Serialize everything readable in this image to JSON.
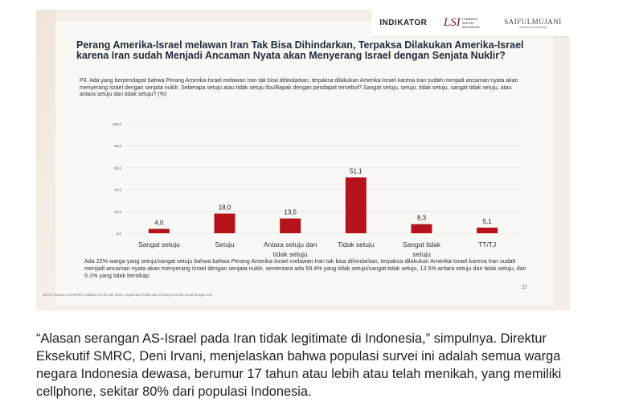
{
  "logos": {
    "indikator": "INDIKATOR",
    "lsi_mark": "LSI",
    "lsi_text": "LEMBAGA SURVEI INDONESIA",
    "saiful": "SAIFULMUJANI",
    "saiful_sub": "research & consulting"
  },
  "slide": {
    "title": "Perang Amerika-Israel melawan Iran Tak Bisa Dihindarkan, Terpaksa Dilakukan Amerika-Israel karena Iran sudah Menjadi Ancaman Nyata akan Menyerang Israel dengan Senjata Nuklir?",
    "question": "P4. Ada yang berpendapat bahwa Perang Amerika-Israel melawan Iran tak bisa dihindarkan, terpaksa dilakukan Amerika-Israel karena Iran sudah menjadi ancaman nyata akan menyerang Israel dengan senjata nuklir. Seberapa setuju atau tidak setuju Ibu/Bapak dengan pendapat tersebut? Sangat setuju, setuju, tidak setuju, sangat tidak setuju, atau antara setuju dan tidak setuju? (%)",
    "summary": "Ada 22% warga yang setuju/sangat setuju bahwa bahwa Perang Amerika-Israel melawan Iran tak bisa dihindarkan, terpaksa dilakukan Amerika-Israel karena Iran sudah menjadi ancaman nyata akan menyerang Israel dengan senjata nuklir, sementara ada 59.4% yang tidak setuju/sangat tidak setuju, 13.5% antara setuju dan tidak setuju, dan 5.1% yang tidak bersikap.",
    "page_number": "27",
    "footnote": "Survei Telepon LSI-SMRC-Indikator 12-31 Mar 2026: Legitimasi Publik atas Perang Amerika-Israel dengan Iran"
  },
  "chart_data": {
    "type": "bar",
    "categories": [
      "Sangat setuju",
      "Setuju",
      "Antara setuju dan tidak setuju",
      "Tidak setuju",
      "Sangat tidak setuju",
      "TT/TJ"
    ],
    "category_lines": [
      [
        "Sangat setuju"
      ],
      [
        "Setuju"
      ],
      [
        "Antara setuju dan",
        "tidak setuju"
      ],
      [
        "Tidak setuju"
      ],
      [
        "Sangat tidak",
        "setuju"
      ],
      [
        "TT/TJ"
      ]
    ],
    "values": [
      4.0,
      18.0,
      13.5,
      51.1,
      8.3,
      5.1
    ],
    "value_labels": [
      "4,0",
      "18,0",
      "13,5",
      "51,1",
      "8,3",
      "5,1"
    ],
    "yticks": [
      "0,0",
      "20,0",
      "40,0",
      "60,0",
      "80,0",
      "100,0"
    ],
    "ylim": [
      0,
      100
    ],
    "bar_color": "#b5121b",
    "grid": true
  },
  "article": {
    "text": "“Alasan serangan AS-Israel pada Iran tidak legitimate di Indonesia,” simpulnya. Direktur Eksekutif SMRC, Deni Irvani, menjelaskan bahwa populasi survei ini adalah semua warga negara Indonesia dewasa, berumur 17 tahun atau lebih atau telah menikah, yang memiliki cellphone, sekitar 80% dari populasi Indonesia."
  }
}
